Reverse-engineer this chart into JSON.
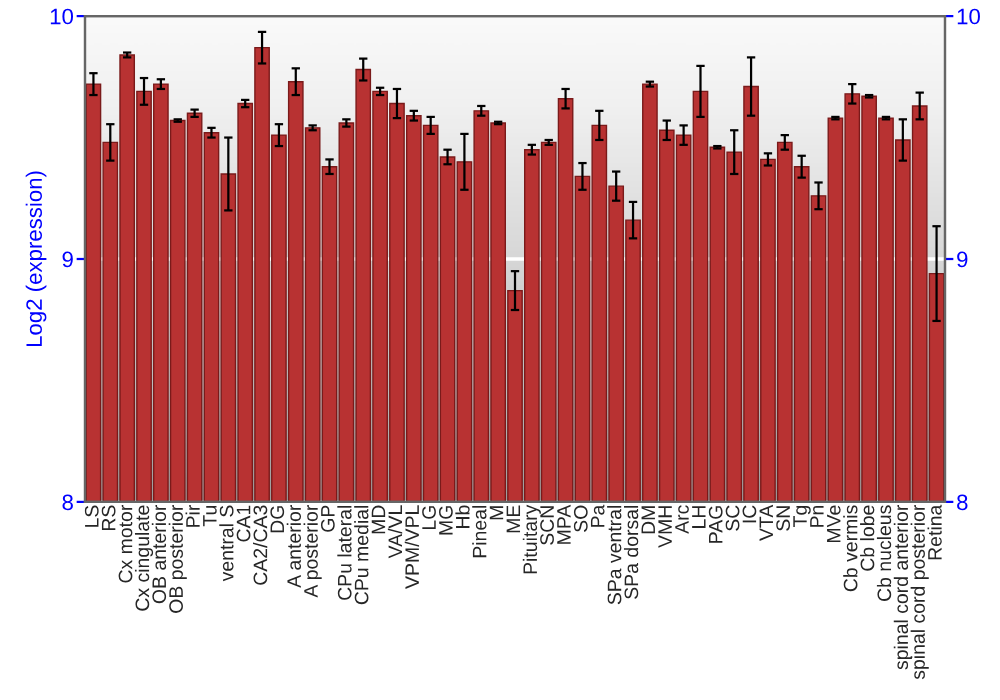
{
  "chart_data": {
    "type": "bar",
    "ylabel": "Log2 (expression)",
    "color": "#b83232",
    "categories": [
      "LS",
      "RS",
      "Cx motor",
      "Cx cingulate",
      "OB anterior",
      "OB posterior",
      "Pir",
      "Tu",
      "ventral S",
      "CA1",
      "CA2/CA3",
      "DG",
      "A anterior",
      "A posterior",
      "GP",
      "CPu lateral",
      "CPu medial",
      "MD",
      "VA/VL",
      "VPM/VPL",
      "LG",
      "MG",
      "Hb",
      "Pineal",
      "M",
      "ME",
      "Pituitary",
      "SCN",
      "MPA",
      "SO",
      "Pa",
      "SPa ventral",
      "SPa dorsal",
      "DM",
      "VMH",
      "Arc",
      "LH",
      "PAG",
      "SC",
      "IC",
      "VTA",
      "SN",
      "Tg",
      "Pn",
      "MVe",
      "Cb vermis",
      "Cb lobe",
      "Cb nucleus",
      "spinal cord anterior",
      "spinal cord posterior",
      "Retina"
    ],
    "values": [
      9.72,
      9.48,
      9.84,
      9.69,
      9.72,
      9.57,
      9.6,
      9.52,
      9.35,
      9.64,
      9.87,
      9.51,
      9.73,
      9.54,
      9.38,
      9.56,
      9.78,
      9.69,
      9.64,
      9.59,
      9.55,
      9.42,
      9.4,
      9.61,
      9.56,
      8.87,
      9.45,
      9.48,
      9.66,
      9.34,
      9.55,
      9.3,
      9.16,
      9.72,
      9.53,
      9.51,
      9.69,
      9.46,
      9.44,
      9.71,
      9.41,
      9.48,
      9.38,
      9.26,
      9.58,
      9.68,
      9.67,
      9.58,
      9.49,
      9.63,
      8.94
    ],
    "errors": [
      0.045,
      0.075,
      0.01,
      0.055,
      0.02,
      0.005,
      0.015,
      0.02,
      0.15,
      0.015,
      0.065,
      0.045,
      0.055,
      0.01,
      0.03,
      0.015,
      0.045,
      0.015,
      0.06,
      0.02,
      0.035,
      0.03,
      0.115,
      0.02,
      0.005,
      0.08,
      0.02,
      0.01,
      0.04,
      0.055,
      0.06,
      0.06,
      0.075,
      0.01,
      0.04,
      0.04,
      0.105,
      0.005,
      0.09,
      0.12,
      0.025,
      0.03,
      0.045,
      0.055,
      0.005,
      0.04,
      0.005,
      0.005,
      0.085,
      0.055,
      0.195
    ],
    "ylim": [
      8,
      10
    ],
    "yticks": [
      8,
      9,
      10
    ],
    "y2lim": [
      8,
      10
    ],
    "y2ticks": [
      8,
      9,
      10
    ],
    "grid": "y"
  }
}
